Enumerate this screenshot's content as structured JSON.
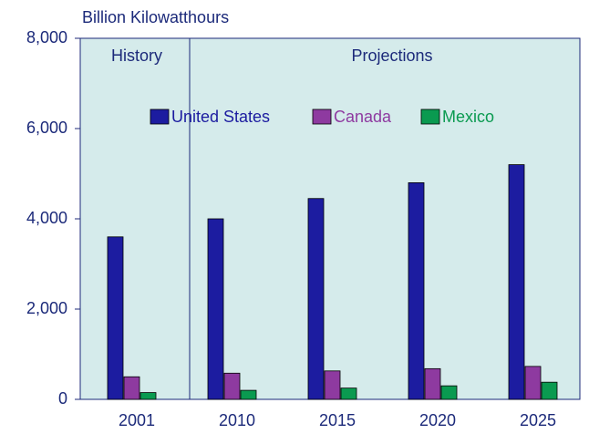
{
  "chart_data": {
    "type": "bar",
    "y_label": "Billion Kilowatthours",
    "annotations": [
      "History",
      "Projections"
    ],
    "categories": [
      "2001",
      "2010",
      "2015",
      "2020",
      "2025"
    ],
    "series": [
      {
        "name": "United States",
        "color": "#1c1ca0",
        "values": [
          3600,
          4000,
          4450,
          4800,
          5200
        ]
      },
      {
        "name": "Canada",
        "color": "#8e3aa0",
        "values": [
          500,
          580,
          630,
          680,
          730
        ]
      },
      {
        "name": "Mexico",
        "color": "#0a9a50",
        "values": [
          150,
          200,
          250,
          300,
          380
        ]
      }
    ],
    "ylim": [
      0,
      8000
    ],
    "yticks": [
      0,
      {
        "value": 2000,
        "label": "2,000"
      },
      {
        "value": 4000,
        "label": "4,000"
      },
      {
        "value": 6000,
        "label": "6,000"
      },
      {
        "value": 8000,
        "label": "8,000"
      }
    ]
  }
}
